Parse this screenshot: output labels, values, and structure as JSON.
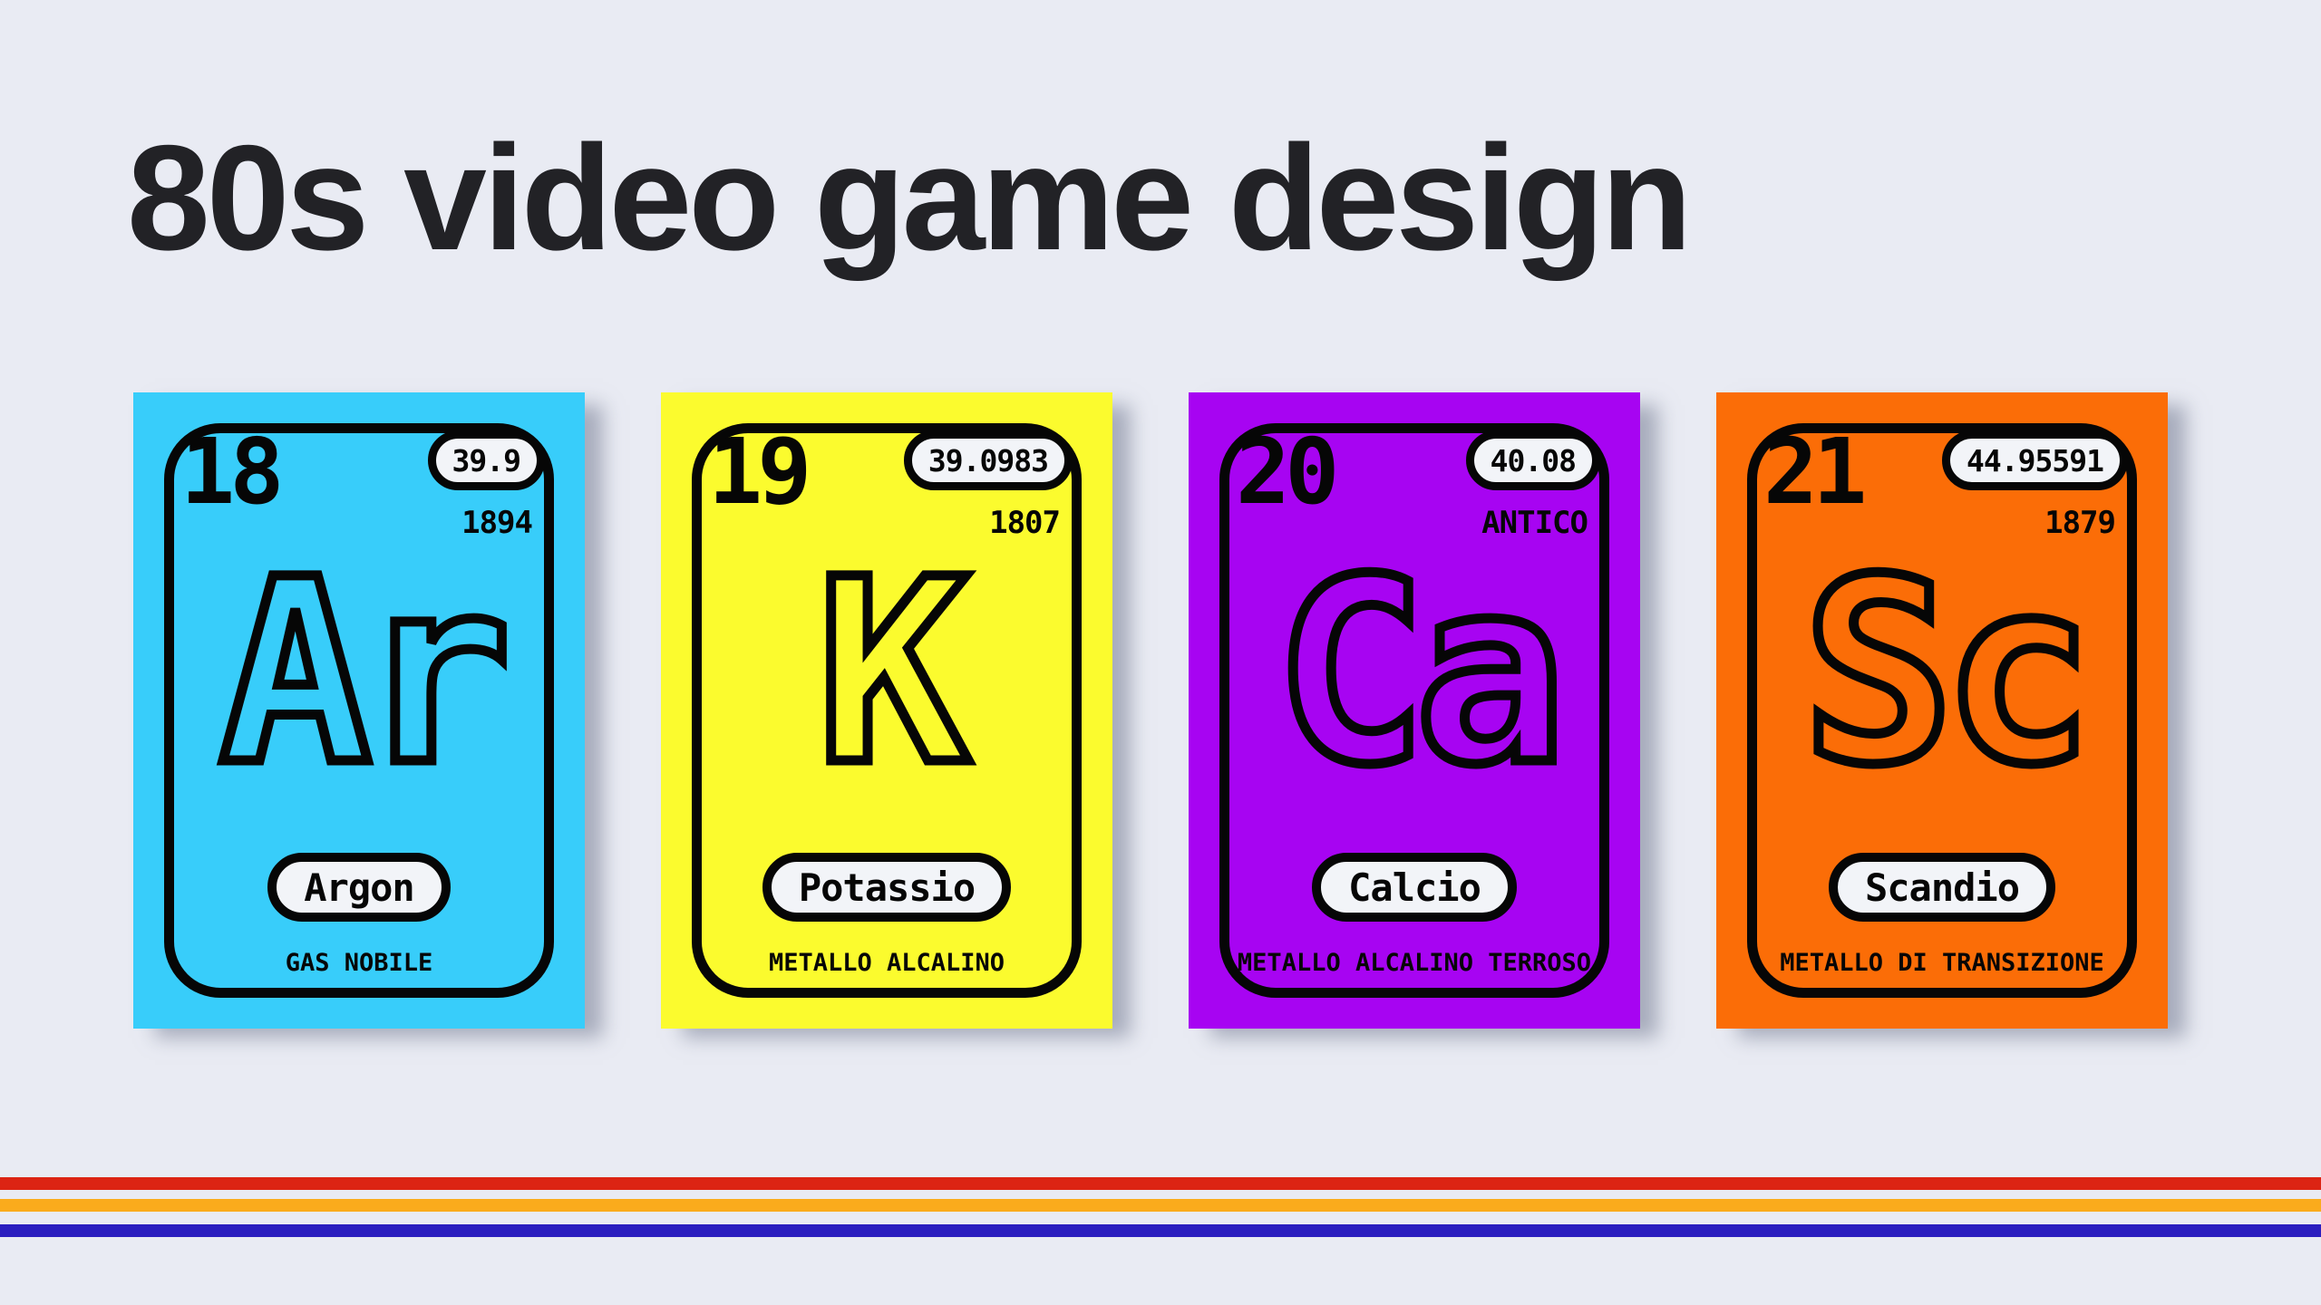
{
  "title": "80s video game design",
  "colors": {
    "background": "#E9EBF3",
    "ink": "#060606",
    "pill_fill": "#F2F4F8"
  },
  "cards": [
    {
      "number": "18",
      "mass": "39.9",
      "discovery": "1894",
      "symbol": "Ar",
      "name": "Argon",
      "category": "GAS NOBILE",
      "color": "#38CDFA"
    },
    {
      "number": "19",
      "mass": "39.0983",
      "discovery": "1807",
      "symbol": "K",
      "name": "Potassio",
      "category": "METALLO ALCALINO",
      "color": "#FBFB2E"
    },
    {
      "number": "20",
      "mass": "40.08",
      "discovery": "ANTICO",
      "symbol": "Ca",
      "name": "Calcio",
      "category": "METALLO ALCALINO TERROSO",
      "color": "#A704F2"
    },
    {
      "number": "21",
      "mass": "44.95591",
      "discovery": "1879",
      "symbol": "Sc",
      "name": "Scandio",
      "category": "METALLO DI TRANSIZIONE",
      "color": "#FB6D07"
    }
  ],
  "stripes": [
    {
      "name": "red",
      "color": "#DC2413"
    },
    {
      "name": "amber",
      "color": "#FAAB1C"
    },
    {
      "name": "blue",
      "color": "#2B1EBF"
    }
  ]
}
